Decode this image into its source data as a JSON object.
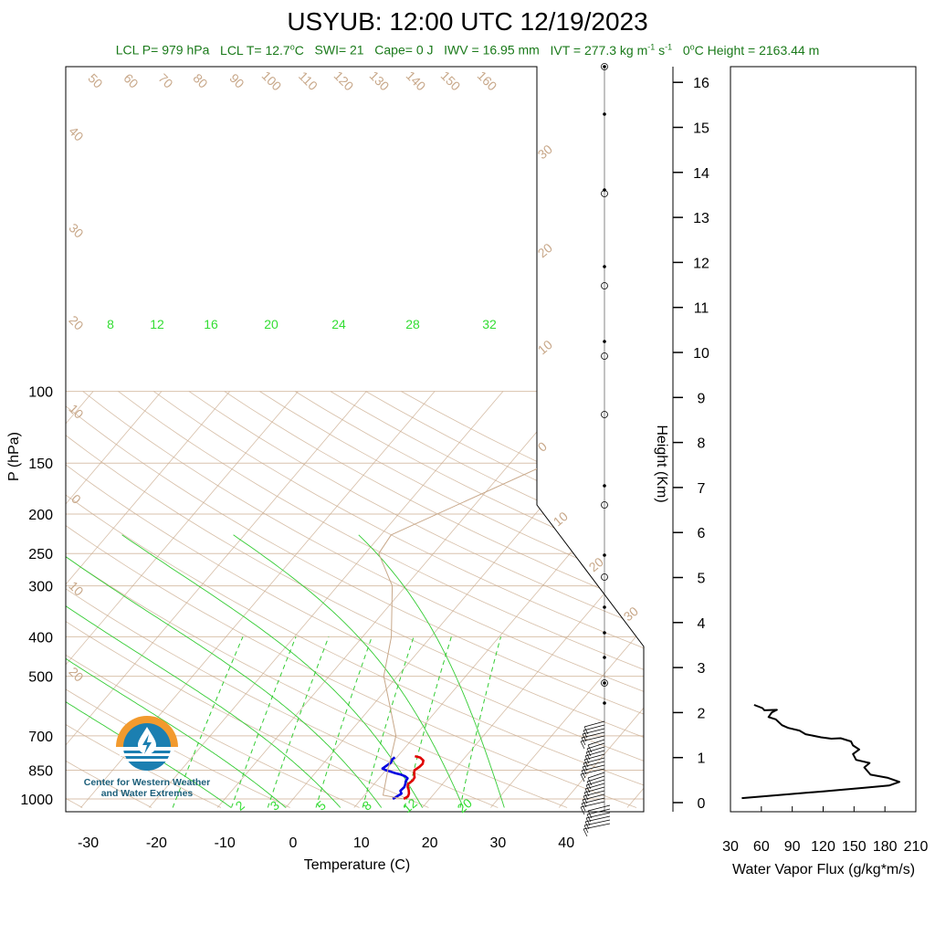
{
  "title": "USYUB: 12:00 UTC 12/19/2023",
  "subtitle": {
    "lcl_p": "LCL P= 979 hPa",
    "lcl_t_prefix": "LCL T= 12.7",
    "lcl_t_suffix": "C",
    "swi": "SWI= 21",
    "cape": "Cape= 0 J",
    "iwv": "IWV = 16.95 mm",
    "ivt_prefix": "IVT = 277.3 kg m",
    "ivt_exp1": "-1",
    "ivt_mid": " s",
    "ivt_exp2": "-1",
    "zero_prefix": "0",
    "zero_suffix": "C Height = 2163.44 m"
  },
  "logo": {
    "text_line1": "Center for Western Weather",
    "text_line2": "and Water Extremes"
  },
  "colors": {
    "temperature": "#e00000",
    "dewpoint": "#0000e0",
    "parcel": "#c8a88a",
    "dry_adiabat": "#c8a88a",
    "mixing_ratio": "#33cc33",
    "moist_adiabat": "#33cc33",
    "text_green": "#1a7a1a"
  },
  "chart_data": [
    {
      "type": "line",
      "subtype": "skew-t",
      "xlabel": "Temperature (C)",
      "ylabel": "P (hPa)",
      "y_right_label": "Height (Km)",
      "x_ticks": [
        -30,
        -20,
        -10,
        0,
        10,
        20,
        30,
        40
      ],
      "p_ticks": [
        100,
        150,
        200,
        250,
        300,
        400,
        500,
        700,
        850,
        1000
      ],
      "height_ticks": [
        0,
        1,
        2,
        3,
        4,
        5,
        6,
        7,
        8,
        9,
        10,
        11,
        12,
        13,
        14,
        15,
        16
      ],
      "mixing_ratio_labels_top": [
        "8",
        "12",
        "16",
        "20",
        "24",
        "28",
        "32"
      ],
      "mixing_ratio_labels_bottom": [
        "2",
        "3",
        "5",
        "8",
        "12",
        "20"
      ],
      "dry_adiabat_labels_top": [
        "50",
        "60",
        "70",
        "80",
        "90",
        "100",
        "110",
        "120",
        "130",
        "140",
        "150",
        "160"
      ],
      "dry_adiabat_labels_left": [
        "40",
        "30",
        "20",
        "10",
        "0",
        "10",
        "20"
      ],
      "isotherm_labels_right": [
        "30",
        "20",
        "10",
        "0",
        "10",
        "20",
        "30"
      ],
      "series": [
        {
          "name": "Temperature",
          "points": [
            [
              16.2,
              1000
            ],
            [
              16.5,
              985
            ],
            [
              16.3,
              970
            ],
            [
              15.8,
              950
            ],
            [
              15.3,
              935
            ],
            [
              15,
              920
            ],
            [
              15.2,
              900
            ],
            [
              15.1,
              885
            ],
            [
              14.8,
              875
            ],
            [
              14.4,
              860
            ],
            [
              14.2,
              850
            ],
            [
              14.5,
              835
            ],
            [
              14.6,
              820
            ],
            [
              14.3,
              805
            ],
            [
              13.5,
              792
            ],
            [
              12.5,
              785
            ]
          ]
        },
        {
          "name": "Dewpoint",
          "points": [
            [
              14.6,
              1000
            ],
            [
              14.9,
              985
            ],
            [
              15.2,
              970
            ],
            [
              14.7,
              955
            ],
            [
              14.8,
              935
            ],
            [
              14.6,
              920
            ],
            [
              14.3,
              905
            ],
            [
              14.2,
              890
            ],
            [
              13.6,
              880
            ],
            [
              12.8,
              872
            ],
            [
              11.8,
              865
            ],
            [
              11,
              858
            ],
            [
              10,
              850
            ],
            [
              9.3,
              842
            ],
            [
              9.5,
              830
            ],
            [
              9.8,
              815
            ],
            [
              9.6,
              800
            ],
            [
              9.7,
              790
            ]
          ]
        },
        {
          "name": "Parcel",
          "points": [
            [
              16.2,
              1000
            ],
            [
              12.7,
              979
            ],
            [
              10.3,
              850
            ],
            [
              7.2,
              700
            ],
            [
              3.0,
              600
            ],
            [
              -2.0,
              500
            ],
            [
              -5.8,
              400
            ],
            [
              -12.0,
              300
            ],
            [
              -18.0,
              250
            ],
            [
              -18.5,
              225
            ],
            [
              6,
              112
            ]
          ]
        }
      ]
    },
    {
      "type": "line",
      "xlabel": "Water Vapor Flux (g/kg*m/s)",
      "ylabel": "Height (Km)",
      "x_ticks": [
        30,
        60,
        90,
        120,
        150,
        180,
        210
      ],
      "xlim": [
        30,
        210
      ],
      "ylim": [
        -0.2,
        16.5
      ],
      "series": [
        {
          "name": "Water Vapor Flux",
          "points": [
            [
              41,
              0.1
            ],
            [
              120,
              0.25
            ],
            [
              160,
              0.33
            ],
            [
              184,
              0.38
            ],
            [
              194,
              0.46
            ],
            [
              183,
              0.55
            ],
            [
              166,
              0.62
            ],
            [
              160,
              0.78
            ],
            [
              165,
              0.88
            ],
            [
              152,
              0.95
            ],
            [
              149,
              1.08
            ],
            [
              155,
              1.18
            ],
            [
              149,
              1.27
            ],
            [
              147,
              1.36
            ],
            [
              137,
              1.43
            ],
            [
              128,
              1.42
            ],
            [
              118,
              1.45
            ],
            [
              103,
              1.52
            ],
            [
              97,
              1.6
            ],
            [
              86,
              1.66
            ],
            [
              80,
              1.72
            ],
            [
              74,
              1.85
            ],
            [
              67,
              1.9
            ],
            [
              70,
              2.0
            ],
            [
              75,
              2.06
            ],
            [
              63,
              2.05
            ],
            [
              61,
              2.1
            ],
            [
              53,
              2.17
            ]
          ]
        }
      ]
    }
  ]
}
